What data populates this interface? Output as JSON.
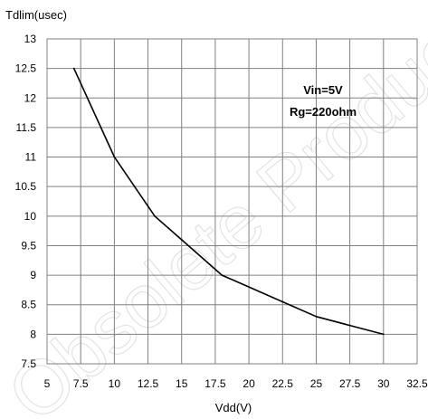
{
  "chart_data": {
    "type": "line",
    "ylabel": "Tdlim(usec)",
    "xlabel": "Vdd(V)",
    "xlim": [
      5,
      32.5
    ],
    "ylim": [
      7.5,
      13
    ],
    "xticks": [
      "5",
      "7.5",
      "10",
      "12.5",
      "15",
      "17.5",
      "20",
      "22.5",
      "25",
      "27.5",
      "30",
      "32.5"
    ],
    "yticks": [
      "13",
      "12.5",
      "12",
      "11.5",
      "11",
      "10.5",
      "10",
      "9.5",
      "9",
      "8.5",
      "8",
      "7.5"
    ],
    "grid": true,
    "annotations": [
      "Vin=5V",
      "Rg=220ohm"
    ],
    "series": [
      {
        "x": [
          7,
          10,
          13,
          15,
          18,
          20,
          22.5,
          25,
          27.5,
          30
        ],
        "y": [
          12.5,
          11,
          10,
          9.6,
          9,
          8.8,
          8.55,
          8.3,
          8.15,
          8
        ]
      }
    ],
    "colors": {
      "line": "#000000",
      "grid": "#808080"
    }
  },
  "watermark": "Obsolete Product(s)"
}
